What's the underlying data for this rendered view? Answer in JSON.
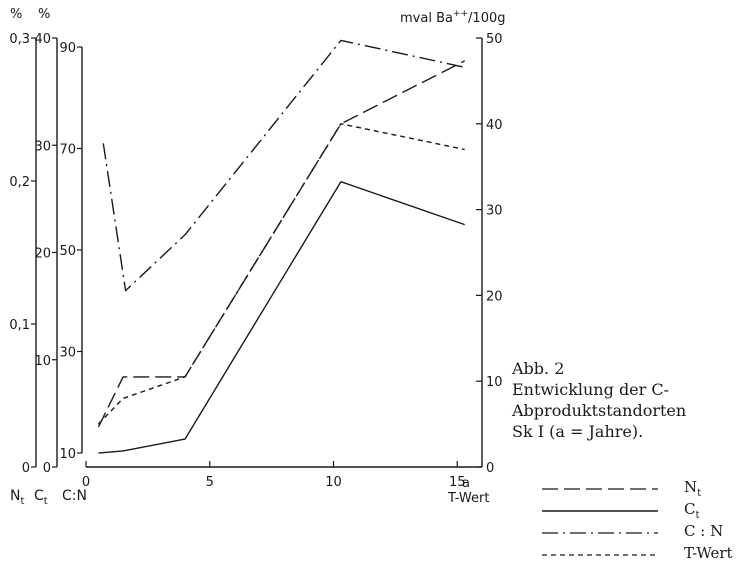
{
  "chart_data": {
    "type": "line",
    "x_axis": {
      "label": "T-Wert",
      "unit_label": "a",
      "range": [
        0,
        16
      ],
      "ticks": [
        "0",
        "5",
        "10",
        "15"
      ]
    },
    "left_axes": [
      {
        "name": "N_t",
        "label_main": "N",
        "label_sub": "t",
        "unit": "%",
        "range": [
          0,
          0.3
        ],
        "ticks": [
          "0",
          "0,1",
          "0,2",
          "0,3"
        ]
      },
      {
        "name": "C_t",
        "label_main": "C",
        "label_sub": "t",
        "unit": "%",
        "range": [
          0,
          40
        ],
        "ticks": [
          "0",
          "10",
          "20",
          "30",
          "40"
        ]
      },
      {
        "name": "C:N",
        "label_main": "C:N",
        "label_sub": "",
        "unit": "",
        "range": [
          10,
          90
        ],
        "ticks": [
          "10",
          "30",
          "50",
          "70",
          "90"
        ]
      }
    ],
    "right_axis": {
      "label_main": "mval Ba",
      "label_sup": "++",
      "label_tail": "/100g",
      "range": [
        0,
        50
      ],
      "ticks": [
        "0",
        "10",
        "20",
        "30",
        "40",
        "50"
      ]
    },
    "series": [
      {
        "name": "N_t",
        "axis": "N_t",
        "style": "long-dash",
        "x": [
          0.5,
          1.5,
          4,
          10.3,
          15.3
        ],
        "y": [
          0.028,
          0.063,
          0.063,
          0.24,
          0.284
        ]
      },
      {
        "name": "C_t",
        "axis": "C_t",
        "style": "solid",
        "x": [
          0.5,
          1.5,
          4,
          10.3,
          15.3
        ],
        "y": [
          1.3,
          1.5,
          2.6,
          26.6,
          22.6
        ]
      },
      {
        "name": "C:N",
        "axis": "C:N",
        "style": "dash-dot",
        "x": [
          0.7,
          1.6,
          4,
          10.3,
          15.3
        ],
        "y": [
          71,
          42,
          53,
          91.3,
          86
        ]
      },
      {
        "name": "T-Wert",
        "axis": "right",
        "style": "short-dash",
        "x": [
          0.5,
          1.5,
          4,
          10.3,
          15.3
        ],
        "y": [
          5,
          8,
          10.5,
          40,
          37
        ]
      }
    ],
    "grid": false
  },
  "caption": {
    "line1": "Abb. 2",
    "line2": "Entwicklung der C-",
    "line3": "Abproduktstandorten",
    "line4": "Sk I (a = Jahre)."
  },
  "legend": {
    "items": [
      {
        "main": "N",
        "sub": "t",
        "style": "long-dash"
      },
      {
        "main": "C",
        "sub": "t",
        "style": "solid"
      },
      {
        "main": "C : N",
        "sub": "",
        "style": "dash-dot"
      },
      {
        "main": "T-Wert",
        "sub": "",
        "style": "short-dash"
      }
    ]
  }
}
